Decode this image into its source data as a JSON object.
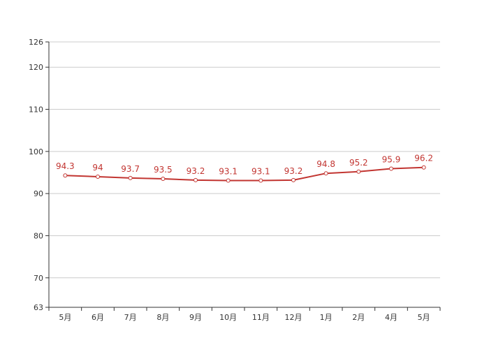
{
  "chart_data": {
    "type": "line",
    "categories": [
      "5月",
      "6月",
      "7月",
      "8月",
      "9月",
      "10月",
      "11月",
      "12月",
      "1月",
      "2月",
      "4月",
      "5月"
    ],
    "series": [
      {
        "values": [
          94.3,
          94,
          93.7,
          93.5,
          93.2,
          93.1,
          93.1,
          93.2,
          94.8,
          95.2,
          95.9,
          96.2
        ],
        "data_labels": [
          "94.3",
          "94",
          "93.7",
          "93.5",
          "93.2",
          "93.1",
          "93.1",
          "93.2",
          "94.8",
          "95.2",
          "95.9",
          "96.2"
        ],
        "color": "#c23531"
      }
    ],
    "ylim": [
      63,
      126
    ],
    "yticks": [
      63,
      70,
      80,
      90,
      100,
      110,
      120,
      126
    ],
    "ytick_labels": [
      "63",
      "70",
      "80",
      "90",
      "100",
      "110",
      "120",
      "126"
    ],
    "grid": true,
    "legend": "none",
    "title": "",
    "xlabel": "",
    "ylabel": ""
  },
  "colors": {
    "series": "#c23531",
    "grid": "#cccccc",
    "axis": "#333333"
  }
}
